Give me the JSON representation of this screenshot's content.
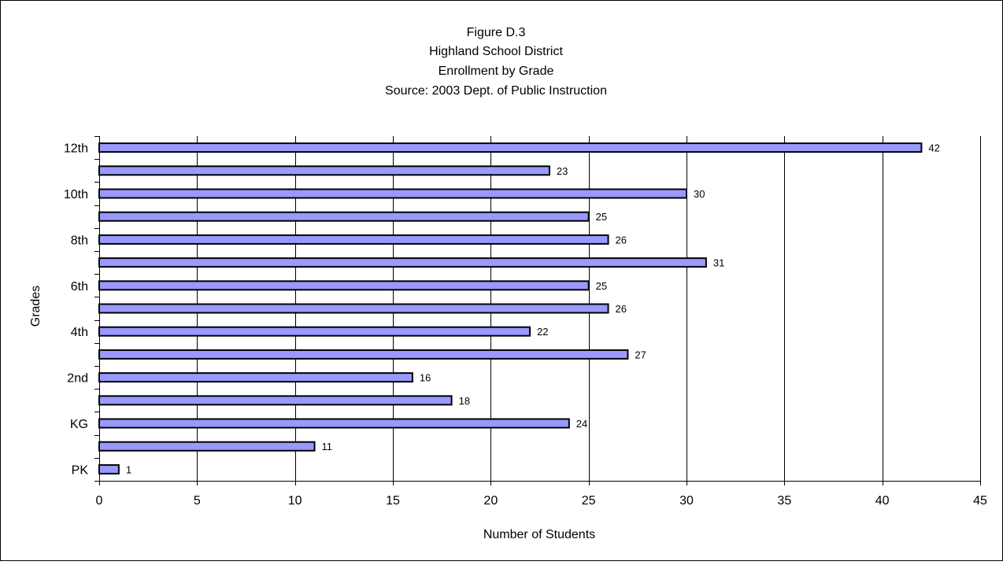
{
  "chart_data": {
    "type": "bar",
    "orientation": "horizontal",
    "title_lines": [
      "Figure D.3",
      "Highland School District",
      "Enrollment by Grade",
      "Source:  2003 Dept. of Public Instruction"
    ],
    "xlabel": "Number of Students",
    "ylabel": "Grades",
    "xlim": [
      0,
      45
    ],
    "x_ticks": [
      "0",
      "5",
      "10",
      "15",
      "20",
      "25",
      "30",
      "35",
      "40",
      "45"
    ],
    "categories": [
      "PK",
      "",
      "KG",
      "",
      "2nd",
      "",
      "4th",
      "",
      "6th",
      "",
      "8th",
      "",
      "10th",
      "",
      "12th"
    ],
    "values": [
      1,
      11,
      24,
      18,
      16,
      27,
      22,
      26,
      25,
      31,
      26,
      25,
      30,
      23,
      42
    ],
    "data_labels": [
      "1",
      "11",
      "24",
      "18",
      "16",
      "27",
      "22",
      "26",
      "25",
      "31",
      "26",
      "25",
      "30",
      "23",
      "42"
    ],
    "grid": "vertical major gridlines",
    "legend": "none",
    "colors": {
      "bar_fill": "#9999FF",
      "bar_stroke": "#000000",
      "grid": "#000000",
      "frame": "#000000",
      "background": "#FFFFFF"
    }
  }
}
